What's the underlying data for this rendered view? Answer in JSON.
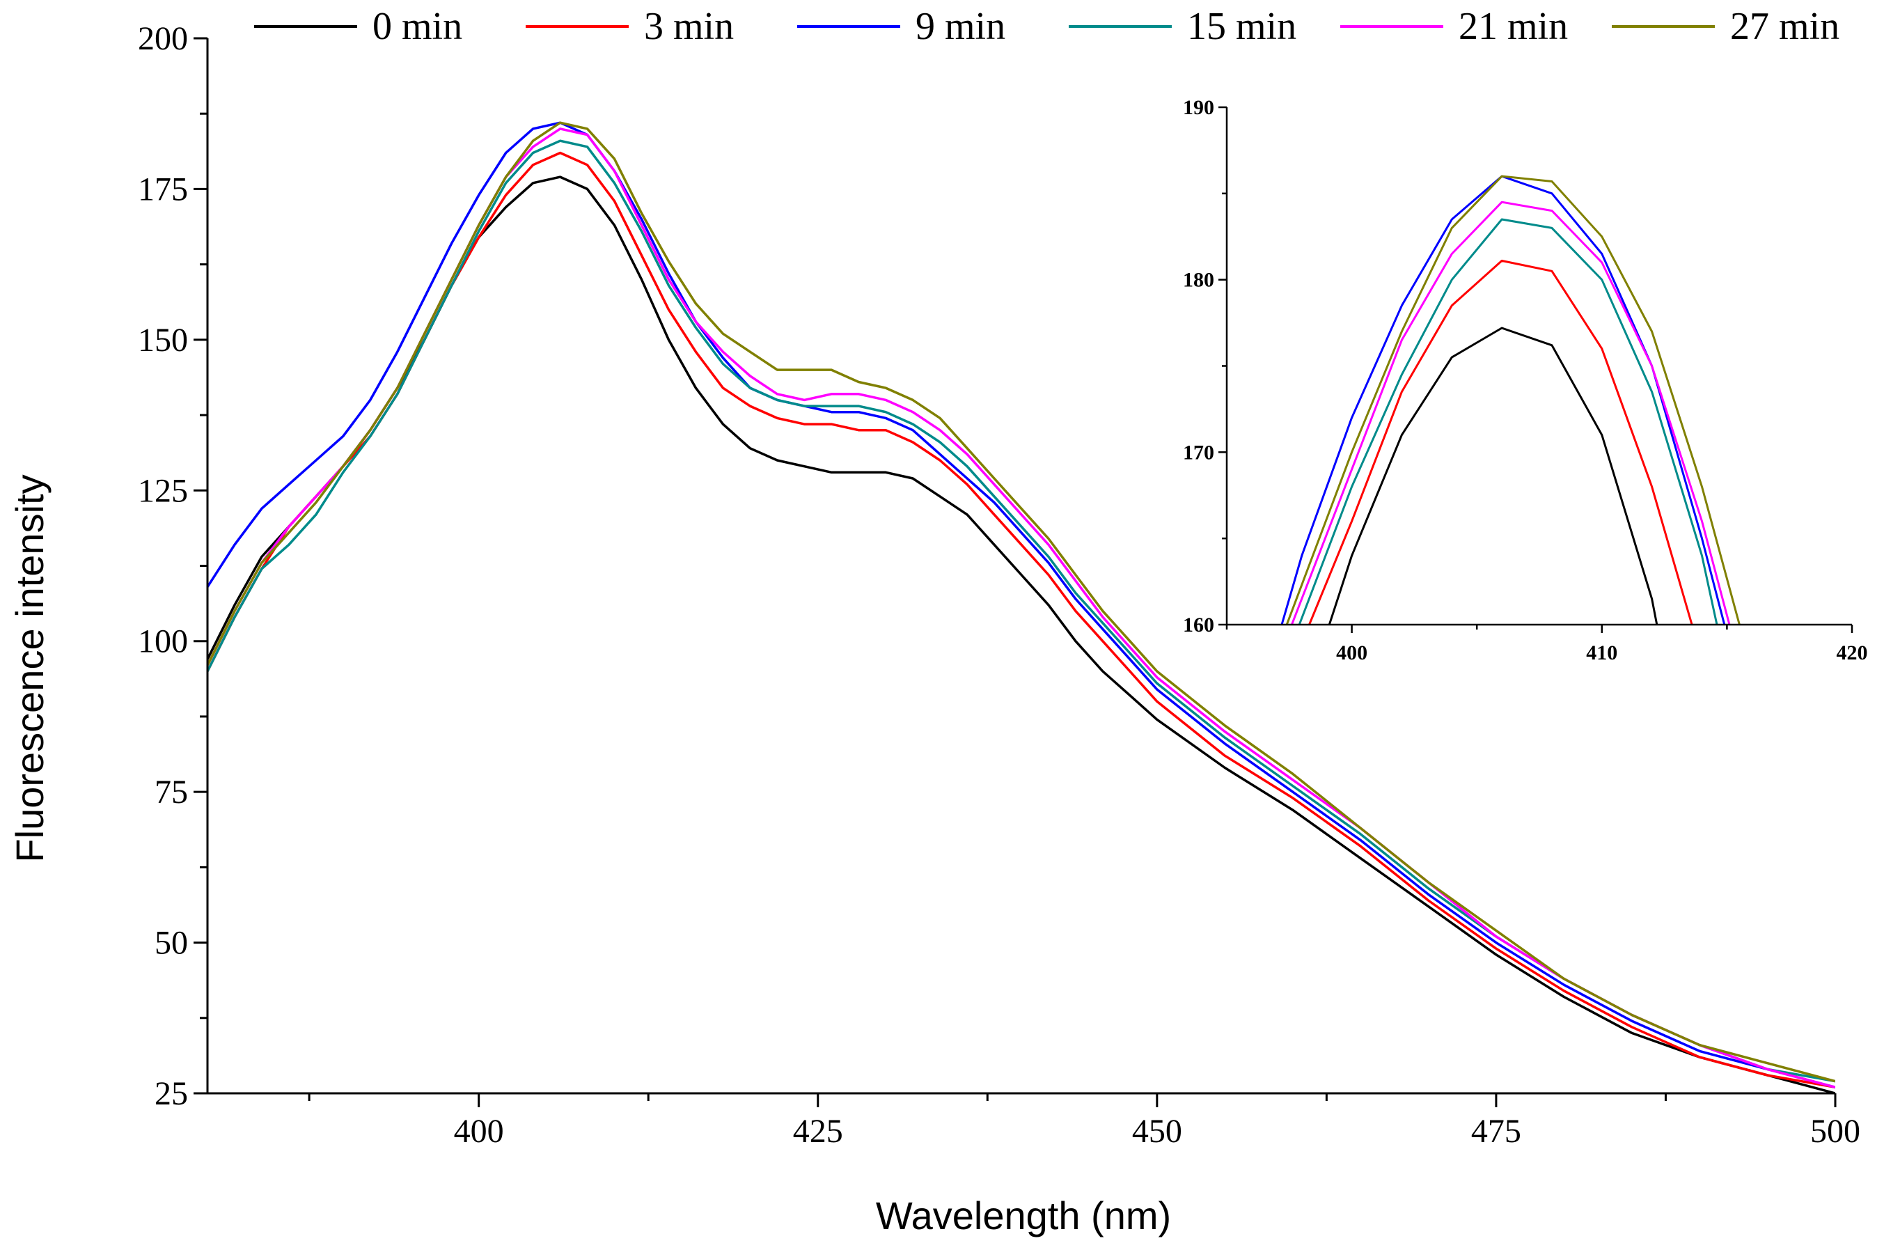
{
  "chart_data": [
    {
      "type": "line",
      "title": "",
      "xlabel": "Wavelength (nm)",
      "ylabel": "Fluorescence intensity",
      "xlim": [
        380,
        500
      ],
      "ylim": [
        25,
        200
      ],
      "xticks": [
        400,
        425,
        450,
        475,
        500
      ],
      "yticks": [
        25,
        50,
        75,
        100,
        125,
        150,
        175,
        200
      ],
      "legend_position": "top",
      "grid": false,
      "series": [
        {
          "name": "0 min",
          "color": "#000000",
          "x": [
            380,
            382,
            384,
            386,
            388,
            390,
            392,
            394,
            396,
            398,
            400,
            402,
            404,
            406,
            408,
            410,
            412,
            414,
            416,
            418,
            420,
            422,
            424,
            426,
            428,
            430,
            432,
            434,
            436,
            438,
            440,
            442,
            444,
            446,
            448,
            450,
            455,
            460,
            465,
            470,
            475,
            480,
            485,
            490,
            495,
            500
          ],
          "y": [
            97,
            106,
            114,
            119,
            124,
            129,
            135,
            142,
            150,
            159,
            167,
            172,
            176,
            177,
            175,
            169,
            160,
            150,
            142,
            136,
            132,
            130,
            129,
            128,
            128,
            128,
            127,
            124,
            121,
            116,
            111,
            106,
            100,
            95,
            91,
            87,
            79,
            72,
            64,
            56,
            48,
            41,
            35,
            31,
            28,
            25
          ]
        },
        {
          "name": "3 min",
          "color": "#ff0000",
          "x": [
            380,
            382,
            384,
            386,
            388,
            390,
            392,
            394,
            396,
            398,
            400,
            402,
            404,
            406,
            408,
            410,
            412,
            414,
            416,
            418,
            420,
            422,
            424,
            426,
            428,
            430,
            432,
            434,
            436,
            438,
            440,
            442,
            444,
            446,
            448,
            450,
            455,
            460,
            465,
            470,
            475,
            480,
            485,
            490,
            495,
            500
          ],
          "y": [
            95,
            104,
            112,
            119,
            124,
            129,
            134,
            141,
            150,
            159,
            167,
            174,
            179,
            181,
            179,
            173,
            164,
            155,
            148,
            142,
            139,
            137,
            136,
            136,
            135,
            135,
            133,
            130,
            126,
            121,
            116,
            111,
            105,
            100,
            95,
            90,
            81,
            74,
            66,
            57,
            49,
            42,
            36,
            31,
            28,
            26
          ]
        },
        {
          "name": "9 min",
          "color": "#0000ff",
          "x": [
            380,
            382,
            384,
            386,
            388,
            390,
            392,
            394,
            396,
            398,
            400,
            402,
            404,
            406,
            408,
            410,
            412,
            414,
            416,
            418,
            420,
            422,
            424,
            426,
            428,
            430,
            432,
            434,
            436,
            438,
            440,
            442,
            444,
            446,
            448,
            450,
            455,
            460,
            465,
            470,
            475,
            480,
            485,
            490,
            495,
            500
          ],
          "y": [
            109,
            116,
            122,
            126,
            130,
            134,
            140,
            148,
            157,
            166,
            174,
            181,
            185,
            186,
            184,
            178,
            170,
            161,
            153,
            147,
            142,
            140,
            139,
            138,
            138,
            137,
            135,
            131,
            127,
            123,
            118,
            113,
            107,
            102,
            97,
            92,
            83,
            75,
            67,
            58,
            50,
            43,
            37,
            32,
            29,
            26
          ]
        },
        {
          "name": "15 min",
          "color": "#008b8b",
          "x": [
            380,
            382,
            384,
            386,
            388,
            390,
            392,
            394,
            396,
            398,
            400,
            402,
            404,
            406,
            408,
            410,
            412,
            414,
            416,
            418,
            420,
            422,
            424,
            426,
            428,
            430,
            432,
            434,
            436,
            438,
            440,
            442,
            444,
            446,
            448,
            450,
            455,
            460,
            465,
            470,
            475,
            480,
            485,
            490,
            495,
            500
          ],
          "y": [
            95,
            104,
            112,
            116,
            121,
            128,
            134,
            141,
            150,
            159,
            168,
            176,
            181,
            183,
            182,
            176,
            168,
            159,
            152,
            146,
            142,
            140,
            139,
            139,
            139,
            138,
            136,
            133,
            129,
            124,
            119,
            114,
            108,
            103,
            98,
            93,
            84,
            76,
            68,
            59,
            51,
            44,
            38,
            33,
            29,
            27
          ]
        },
        {
          "name": "21 min",
          "color": "#ff00ff",
          "x": [
            380,
            382,
            384,
            386,
            388,
            390,
            392,
            394,
            396,
            398,
            400,
            402,
            404,
            406,
            408,
            410,
            412,
            414,
            416,
            418,
            420,
            422,
            424,
            426,
            428,
            430,
            432,
            434,
            436,
            438,
            440,
            442,
            444,
            446,
            448,
            450,
            455,
            460,
            465,
            470,
            475,
            480,
            485,
            490,
            495,
            500
          ],
          "y": [
            96,
            105,
            113,
            119,
            124,
            129,
            135,
            142,
            151,
            160,
            169,
            177,
            182,
            185,
            184,
            178,
            169,
            160,
            153,
            148,
            144,
            141,
            140,
            141,
            141,
            140,
            138,
            135,
            131,
            126,
            121,
            116,
            110,
            104,
            99,
            94,
            85,
            77,
            69,
            60,
            51,
            44,
            38,
            33,
            29,
            26
          ]
        },
        {
          "name": "27 min",
          "color": "#808000",
          "x": [
            380,
            382,
            384,
            386,
            388,
            390,
            392,
            394,
            396,
            398,
            400,
            402,
            404,
            406,
            408,
            410,
            412,
            414,
            416,
            418,
            420,
            422,
            424,
            426,
            428,
            430,
            432,
            434,
            436,
            438,
            440,
            442,
            444,
            446,
            448,
            450,
            455,
            460,
            465,
            470,
            475,
            480,
            485,
            490,
            495,
            500
          ],
          "y": [
            96,
            105,
            113,
            118,
            123,
            129,
            135,
            142,
            151,
            160,
            169,
            177,
            183,
            186,
            185,
            180,
            171,
            163,
            156,
            151,
            148,
            145,
            145,
            145,
            143,
            142,
            140,
            137,
            132,
            127,
            122,
            117,
            111,
            105,
            100,
            95,
            86,
            78,
            69,
            60,
            52,
            44,
            38,
            33,
            30,
            27
          ]
        }
      ]
    },
    {
      "type": "line",
      "title": "",
      "xlabel": "",
      "ylabel": "",
      "xlim": [
        395,
        420
      ],
      "ylim": [
        160,
        190
      ],
      "xticks": [
        400,
        410,
        420
      ],
      "yticks": [
        160,
        170,
        180,
        190
      ],
      "legend_position": "none",
      "grid": false,
      "series": [
        {
          "name": "0 min",
          "color": "#000000",
          "x": [
            399.1,
            400,
            402,
            404,
            406,
            408,
            410,
            412,
            412.2
          ],
          "y": [
            160,
            164,
            171,
            175.5,
            177.2,
            176.2,
            171,
            161.5,
            160
          ]
        },
        {
          "name": "3 min",
          "color": "#ff0000",
          "x": [
            398.3,
            400,
            402,
            404,
            406,
            408,
            410,
            412,
            413.6
          ],
          "y": [
            160,
            166,
            173.5,
            178.5,
            181.1,
            180.5,
            176,
            168,
            160
          ]
        },
        {
          "name": "9 min",
          "color": "#0000ff",
          "x": [
            397.2,
            398,
            400,
            402,
            404,
            406,
            408,
            410,
            412,
            414,
            414.9
          ],
          "y": [
            160,
            164,
            172,
            178.5,
            183.5,
            186,
            185,
            181.5,
            175,
            165,
            160
          ]
        },
        {
          "name": "15 min",
          "color": "#008b8b",
          "x": [
            397.9,
            400,
            402,
            404,
            406,
            408,
            410,
            412,
            414,
            414.6
          ],
          "y": [
            160,
            168,
            174.5,
            180,
            183.5,
            183,
            180,
            173.5,
            164,
            160
          ]
        },
        {
          "name": "21 min",
          "color": "#ff00ff",
          "x": [
            397.6,
            400,
            402,
            404,
            406,
            408,
            410,
            412,
            414,
            415.1
          ],
          "y": [
            160,
            169,
            176.5,
            181.5,
            184.5,
            184,
            181,
            175,
            166,
            160
          ]
        },
        {
          "name": "27 min",
          "color": "#808000",
          "x": [
            397.4,
            400,
            402,
            404,
            406,
            408,
            410,
            412,
            414,
            415.5
          ],
          "y": [
            160,
            170,
            177,
            183,
            186,
            185.7,
            182.5,
            177,
            168,
            160
          ]
        }
      ]
    }
  ]
}
